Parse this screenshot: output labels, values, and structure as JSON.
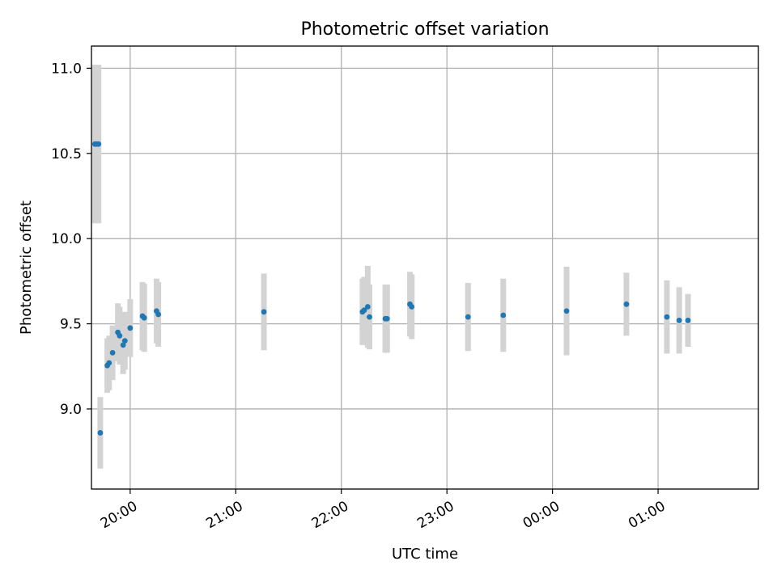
{
  "chart_data": {
    "type": "scatter",
    "title": "Photometric offset variation",
    "xlabel": "UTC time",
    "ylabel": "Photometric offset",
    "x_tick_labels": [
      "20:00",
      "21:00",
      "22:00",
      "23:00",
      "00:00",
      "01:00"
    ],
    "y_tick_labels": [
      "9.0",
      "9.5",
      "10.0",
      "10.5",
      "11.0"
    ],
    "y_ticks": [
      9.0,
      9.5,
      10.0,
      10.5,
      11.0
    ],
    "ylim": [
      8.53,
      11.13
    ],
    "xlim": [
      "19:38",
      "01:57"
    ],
    "grid": true,
    "colors": {
      "point": "#1f77b4",
      "errorbar": "#d3d3d3",
      "grid": "#b0b0b0"
    },
    "points": [
      {
        "x": "19:40",
        "y": 10.555,
        "err": 0.465
      },
      {
        "x": "19:41",
        "y": 10.555,
        "err": 0.465
      },
      {
        "x": "19:42",
        "y": 10.555,
        "err": 0.465
      },
      {
        "x": "19:43",
        "y": 8.86,
        "err": 0.21
      },
      {
        "x": "19:47",
        "y": 9.255,
        "err": 0.16
      },
      {
        "x": "19:48",
        "y": 9.27,
        "err": 0.16
      },
      {
        "x": "19:50",
        "y": 9.33,
        "err": 0.16
      },
      {
        "x": "19:53",
        "y": 9.45,
        "err": 0.17
      },
      {
        "x": "19:54",
        "y": 9.43,
        "err": 0.17
      },
      {
        "x": "19:56",
        "y": 9.375,
        "err": 0.17
      },
      {
        "x": "19:57",
        "y": 9.4,
        "err": 0.17
      },
      {
        "x": "20:00",
        "y": 9.475,
        "err": 0.17
      },
      {
        "x": "20:07",
        "y": 9.545,
        "err": 0.2
      },
      {
        "x": "20:08",
        "y": 9.535,
        "err": 0.2
      },
      {
        "x": "20:15",
        "y": 9.575,
        "err": 0.19
      },
      {
        "x": "20:16",
        "y": 9.555,
        "err": 0.19
      },
      {
        "x": "21:16",
        "y": 9.57,
        "err": 0.225
      },
      {
        "x": "22:12",
        "y": 9.57,
        "err": 0.195
      },
      {
        "x": "22:13",
        "y": 9.58,
        "err": 0.195
      },
      {
        "x": "22:15",
        "y": 9.6,
        "err": 0.24
      },
      {
        "x": "22:16",
        "y": 9.54,
        "err": 0.19
      },
      {
        "x": "22:25",
        "y": 9.53,
        "err": 0.2
      },
      {
        "x": "22:26",
        "y": 9.53,
        "err": 0.2
      },
      {
        "x": "22:39",
        "y": 9.615,
        "err": 0.19
      },
      {
        "x": "22:40",
        "y": 9.6,
        "err": 0.19
      },
      {
        "x": "23:12",
        "y": 9.54,
        "err": 0.2
      },
      {
        "x": "23:32",
        "y": 9.55,
        "err": 0.215
      },
      {
        "x": "00:08",
        "y": 9.575,
        "err": 0.26
      },
      {
        "x": "00:42",
        "y": 9.615,
        "err": 0.185
      },
      {
        "x": "01:05",
        "y": 9.54,
        "err": 0.215
      },
      {
        "x": "01:12",
        "y": 9.52,
        "err": 0.195
      },
      {
        "x": "01:17",
        "y": 9.52,
        "err": 0.155
      }
    ]
  }
}
